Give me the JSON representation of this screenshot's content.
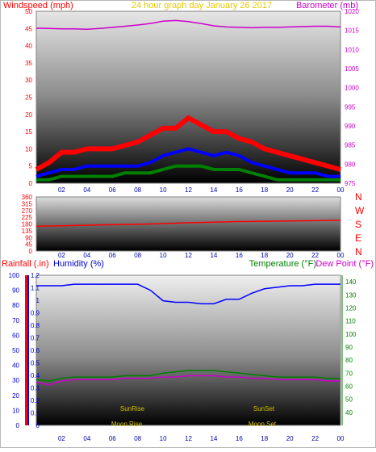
{
  "header": {
    "title": "24 hour graph day   January 26 2017",
    "windspeed": "Windspeed (mph)",
    "barometer": "Barometer (mb)",
    "rainfall": "Rainfall (.in)",
    "humidity": "Humidity (%)",
    "temperature": "Temperature (°F)",
    "dewpoint": "Dew Point (°F)"
  },
  "colors": {
    "windspeed": "#ff0000",
    "wind_avg": "#0000ff",
    "wind_low": "#008000",
    "barometer": "#cc00cc",
    "direction": "#ff0000",
    "humidity": "#0000ff",
    "temperature": "#008000",
    "dewpoint": "#cc00cc",
    "title": "#e6c800",
    "rain": "#ff0000",
    "astro": "#d7c000"
  },
  "x_ticks": [
    "02",
    "04",
    "06",
    "08",
    "10",
    "12",
    "14",
    "16",
    "18",
    "20",
    "22",
    "00"
  ],
  "compass": [
    "N",
    "W",
    "S",
    "E",
    "N"
  ],
  "astro": {
    "sunrise": "SunRise",
    "sunset": "SunSet",
    "moonrise": "Moon Rise",
    "moonset": "Moon Set"
  },
  "chart_data": [
    {
      "type": "line",
      "name": "wind-barometer",
      "x": [
        0,
        1,
        2,
        3,
        4,
        5,
        6,
        7,
        8,
        9,
        10,
        11,
        12,
        13,
        14,
        15,
        16,
        17,
        18,
        19,
        20,
        21,
        22,
        23,
        24
      ],
      "left_axis": {
        "label": "Windspeed (mph)",
        "ylim": [
          0,
          50
        ],
        "ticks": [
          0,
          5,
          10,
          15,
          20,
          25,
          30,
          35,
          40,
          45,
          50
        ]
      },
      "right_axis": {
        "label": "Barometer (mb)",
        "ylim": [
          975,
          1020
        ],
        "ticks": [
          975,
          980,
          985,
          990,
          995,
          1000,
          1005,
          1010,
          1015,
          1020
        ]
      },
      "series": [
        {
          "name": "Windspeed (mph)",
          "axis": "left",
          "values": [
            4,
            6,
            9,
            9,
            10,
            10,
            10,
            11,
            12,
            14,
            16,
            16,
            19,
            17,
            15,
            15,
            13,
            12,
            10,
            9,
            8,
            7,
            6,
            5,
            4
          ]
        },
        {
          "name": "wind-avg",
          "axis": "left",
          "values": [
            2,
            3,
            4,
            4,
            5,
            5,
            5,
            5,
            5,
            6,
            8,
            9,
            10,
            9,
            8,
            9,
            8,
            6,
            5,
            4,
            3,
            3,
            3,
            2,
            2
          ]
        },
        {
          "name": "wind-low",
          "axis": "left",
          "values": [
            1,
            1,
            2,
            2,
            2,
            2,
            2,
            3,
            3,
            3,
            4,
            5,
            5,
            5,
            4,
            4,
            4,
            3,
            2,
            1,
            1,
            1,
            1,
            1,
            1
          ]
        },
        {
          "name": "Barometer (mb)",
          "axis": "right",
          "values": [
            1015.6,
            1015.5,
            1015.4,
            1015.4,
            1015.3,
            1015.5,
            1015.8,
            1016.1,
            1016.4,
            1016.8,
            1017.4,
            1017.6,
            1017.3,
            1016.8,
            1016.2,
            1015.9,
            1015.8,
            1015.7,
            1015.8,
            1015.8,
            1015.9,
            1016.0,
            1016.1,
            1016.1,
            1015.9
          ]
        }
      ]
    },
    {
      "type": "line",
      "name": "wind-direction",
      "x": [
        0,
        2,
        4,
        6,
        8,
        10,
        12,
        14,
        16,
        18,
        20,
        22,
        24
      ],
      "ylim": [
        0,
        360
      ],
      "ticks": [
        0,
        45,
        90,
        135,
        180,
        225,
        270,
        315,
        360
      ],
      "series": [
        {
          "name": "direction",
          "values": [
            165,
            168,
            172,
            175,
            178,
            183,
            188,
            192,
            196,
            198,
            200,
            202,
            205
          ]
        }
      ]
    },
    {
      "type": "line",
      "name": "humidity-temperature",
      "x": [
        0,
        1,
        2,
        3,
        4,
        5,
        6,
        7,
        8,
        9,
        10,
        11,
        12,
        13,
        14,
        15,
        16,
        17,
        18,
        19,
        20,
        21,
        22,
        23,
        24
      ],
      "axes": {
        "rain": {
          "label": "Rainfall (.in)",
          "ylim": [
            0,
            1.2
          ],
          "ticks": [
            0,
            0.1,
            0.2,
            0.3,
            0.4,
            0.5,
            0.6,
            0.7,
            0.8,
            0.9,
            1,
            1.1,
            1.2
          ]
        },
        "humidity": {
          "label": "Humidity (%)",
          "ylim": [
            0,
            100
          ],
          "ticks": [
            0,
            10,
            20,
            30,
            40,
            50,
            60,
            70,
            80,
            90,
            100
          ]
        },
        "temperature": {
          "label": "Temperature (°F)",
          "ylim": [
            30,
            145
          ],
          "ticks": [
            40,
            50,
            60,
            70,
            80,
            90,
            100,
            110,
            120,
            130,
            140
          ]
        }
      },
      "series": [
        {
          "name": "Humidity (%)",
          "axis": "humidity",
          "values": [
            93,
            93,
            93,
            94,
            94,
            94,
            94,
            94,
            94,
            90,
            83,
            82,
            82,
            81,
            81,
            84,
            84,
            88,
            91,
            92,
            93,
            93,
            94,
            94,
            94
          ]
        },
        {
          "name": "Temperature (°F)",
          "axis": "temperature",
          "values": [
            65,
            64,
            66,
            67,
            67,
            67,
            67,
            68,
            68,
            68,
            70,
            71,
            72,
            72,
            72,
            71,
            70,
            69,
            68,
            67,
            67,
            67,
            67,
            66,
            66
          ]
        },
        {
          "name": "Dew Point (°F)",
          "axis": "temperature",
          "values": [
            63,
            61,
            64,
            65,
            65,
            65,
            65,
            66,
            66,
            66,
            67,
            67,
            68,
            68,
            68,
            67,
            67,
            66,
            66,
            65,
            65,
            65,
            65,
            64,
            64
          ]
        }
      ],
      "annotations": [
        {
          "text": "SunRise",
          "x": 7.2
        },
        {
          "text": "SunSet",
          "x": 17.4
        },
        {
          "text": "Moon Rise",
          "x": 6.7
        },
        {
          "text": "Moon Set",
          "x": 17.0
        }
      ]
    }
  ]
}
